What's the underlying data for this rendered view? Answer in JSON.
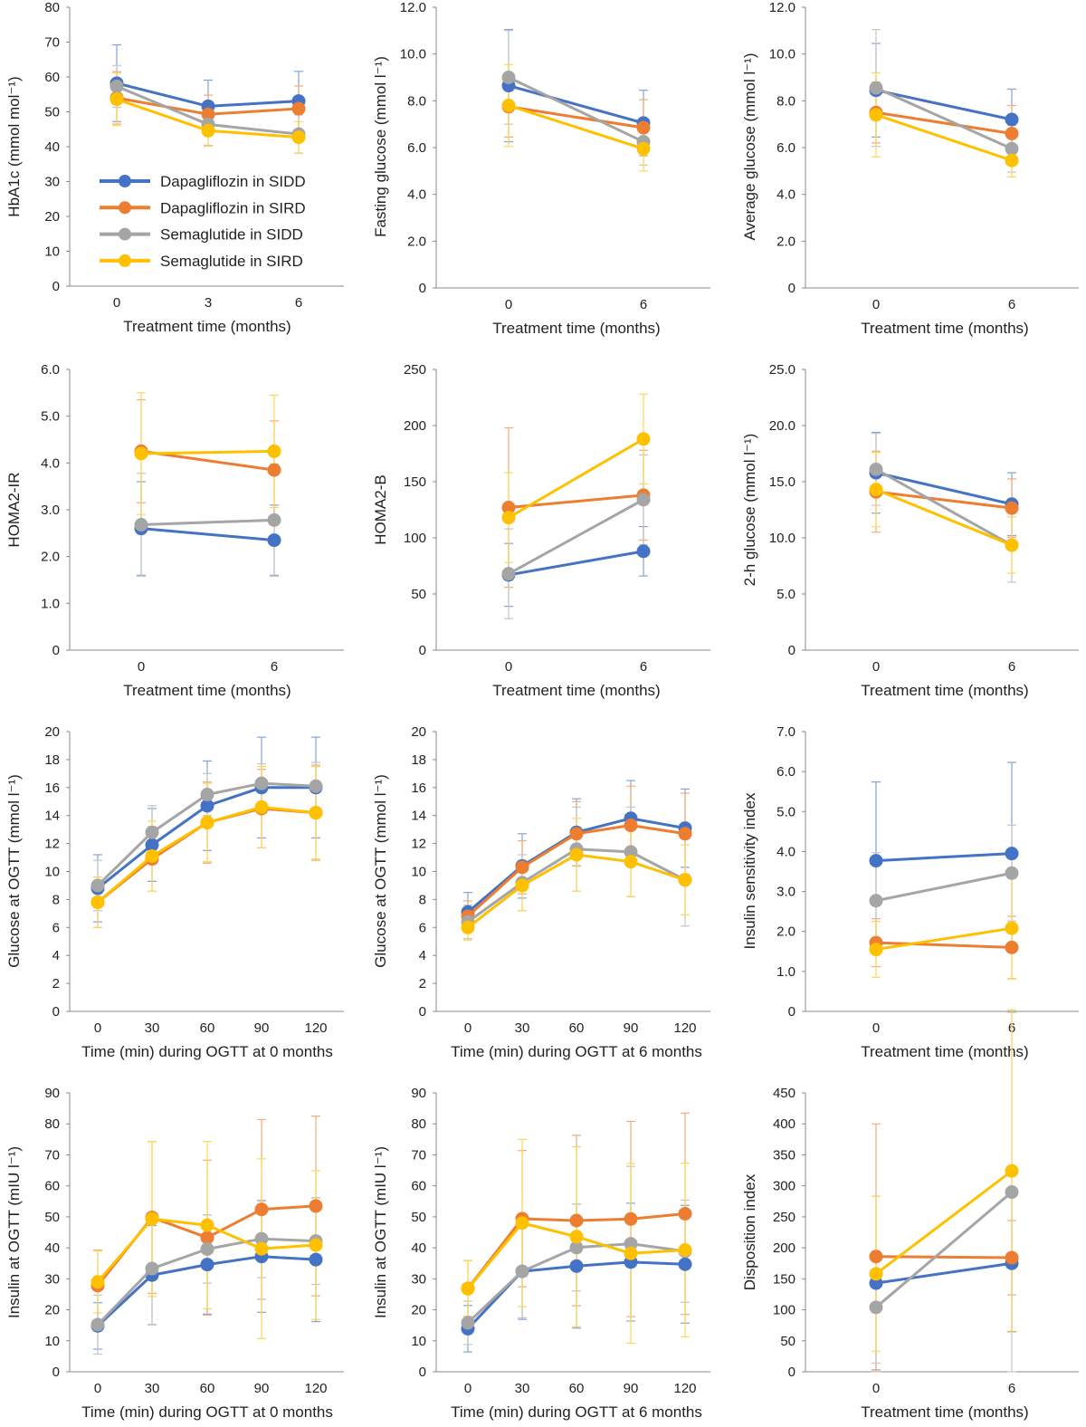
{
  "colors": {
    "Dapagliflozin in SIDD": "#4472C4",
    "Dapagliflozin in SIRD": "#ED7D31",
    "Semaglutide in SIDD": "#A5A5A5",
    "Semaglutide in SIRD": "#FFC000"
  },
  "legend": [
    "Dapagliflozin in SIDD",
    "Dapagliflozin in SIRD",
    "Semaglutide in SIDD",
    "Semaglutide in SIRD"
  ],
  "chart_data": [
    {
      "type": "line",
      "xlabel": "Treatment time (months)",
      "ylabel": "HbA1c (mmol mol⁻¹)",
      "x": [
        "0",
        "3",
        "6"
      ],
      "ylim": [
        0,
        80
      ],
      "yticks": [
        "0",
        "10",
        "20",
        "30",
        "40",
        "50",
        "60",
        "70",
        "80"
      ],
      "legend_position": "lower-left",
      "series": [
        {
          "name": "Dapagliflozin in SIDD",
          "values": [
            58.2,
            51.6,
            53.1
          ],
          "err": [
            11,
            7.5,
            8.5
          ]
        },
        {
          "name": "Dapagliflozin in SIRD",
          "values": [
            54.0,
            49.3,
            50.9
          ],
          "err": [
            7.5,
            5.5,
            6.5
          ]
        },
        {
          "name": "Semaglutide in SIDD",
          "values": [
            57.3,
            46.4,
            43.6
          ],
          "err": [
            6,
            6,
            5.5
          ]
        },
        {
          "name": "Semaglutide in SIRD",
          "values": [
            53.6,
            44.6,
            42.7
          ],
          "err": [
            7.5,
            4.5,
            4.5
          ]
        }
      ]
    },
    {
      "type": "line",
      "xlabel": "Treatment time (months)",
      "ylabel": "Fasting glucose (mmol l⁻¹)",
      "x": [
        "0",
        "6"
      ],
      "ylim": [
        0,
        12
      ],
      "yticks": [
        "0",
        "2.0",
        "4.0",
        "6.0",
        "8.0",
        "10.0",
        "12.0"
      ],
      "series": [
        {
          "name": "Dapagliflozin in SIDD",
          "values": [
            8.65,
            7.05
          ],
          "err": [
            2.4,
            1.4
          ]
        },
        {
          "name": "Dapagliflozin in SIRD",
          "values": [
            7.75,
            6.85
          ],
          "err": [
            1.3,
            1.2
          ]
        },
        {
          "name": "Semaglutide in SIDD",
          "values": [
            9.0,
            6.25
          ],
          "err": [
            2.0,
            1.0
          ]
        },
        {
          "name": "Semaglutide in SIRD",
          "values": [
            7.8,
            5.95
          ],
          "err": [
            1.75,
            0.95
          ]
        }
      ]
    },
    {
      "type": "line",
      "xlabel": "Treatment time (months)",
      "ylabel": "Average glucose (mmol l⁻¹)",
      "x": [
        "0",
        "6"
      ],
      "ylim": [
        0,
        12
      ],
      "yticks": [
        "0",
        "2.0",
        "4.0",
        "6.0",
        "8.0",
        "10.0",
        "12.0"
      ],
      "series": [
        {
          "name": "Dapagliflozin in SIDD",
          "values": [
            8.45,
            7.2
          ],
          "err": [
            2.0,
            1.3
          ]
        },
        {
          "name": "Dapagliflozin in SIRD",
          "values": [
            7.5,
            6.6
          ],
          "err": [
            1.3,
            1.2
          ]
        },
        {
          "name": "Semaglutide in SIDD",
          "values": [
            8.55,
            5.95
          ],
          "err": [
            2.5,
            1.0
          ]
        },
        {
          "name": "Semaglutide in SIRD",
          "values": [
            7.4,
            5.45
          ],
          "err": [
            1.8,
            0.7
          ]
        }
      ]
    },
    {
      "type": "line",
      "xlabel": "Treatment time (months)",
      "ylabel": "HOMA2-IR",
      "x": [
        "0",
        "6"
      ],
      "ylim": [
        0,
        6
      ],
      "yticks": [
        "0",
        "1.0",
        "2.0",
        "3.0",
        "4.0",
        "5.0",
        "6.0"
      ],
      "series": [
        {
          "name": "Dapagliflozin in SIDD",
          "values": [
            2.6,
            2.35
          ],
          "err": [
            1.0,
            0.75
          ]
        },
        {
          "name": "Dapagliflozin in SIRD",
          "values": [
            4.25,
            3.85
          ],
          "err": [
            1.1,
            1.05
          ]
        },
        {
          "name": "Semaglutide in SIDD",
          "values": [
            2.68,
            2.78
          ],
          "err": [
            1.1,
            1.2
          ]
        },
        {
          "name": "Semaglutide in SIRD",
          "values": [
            4.2,
            4.25
          ],
          "err": [
            1.3,
            1.2
          ]
        }
      ]
    },
    {
      "type": "line",
      "xlabel": "Treatment time (months)",
      "ylabel": "HOMA2-B",
      "x": [
        "0",
        "6"
      ],
      "ylim": [
        0,
        250
      ],
      "yticks": [
        "0",
        "50",
        "100",
        "150",
        "200",
        "250"
      ],
      "series": [
        {
          "name": "Dapagliflozin in SIDD",
          "values": [
            67,
            88
          ],
          "err": [
            28,
            22
          ]
        },
        {
          "name": "Dapagliflozin in SIRD",
          "values": [
            127,
            138
          ],
          "err": [
            71,
            40
          ]
        },
        {
          "name": "Semaglutide in SIDD",
          "values": [
            68,
            134
          ],
          "err": [
            40,
            40
          ]
        },
        {
          "name": "Semaglutide in SIRD",
          "values": [
            118,
            188
          ],
          "err": [
            40,
            40
          ]
        }
      ]
    },
    {
      "type": "line",
      "xlabel": "Treatment time (months)",
      "ylabel": "2-h glucose (mmol l⁻¹)",
      "x": [
        "0",
        "6"
      ],
      "ylim": [
        0,
        25
      ],
      "yticks": [
        "0",
        "5.0",
        "10.0",
        "15.0",
        "20.0",
        "25.0"
      ],
      "series": [
        {
          "name": "Dapagliflozin in SIDD",
          "values": [
            15.8,
            13.0
          ],
          "err": [
            3.6,
            2.8
          ]
        },
        {
          "name": "Dapagliflozin in SIRD",
          "values": [
            14.1,
            12.65
          ],
          "err": [
            3.6,
            2.6
          ]
        },
        {
          "name": "Semaglutide in SIDD",
          "values": [
            16.1,
            9.35
          ],
          "err": [
            3.2,
            3.3
          ]
        },
        {
          "name": "Semaglutide in SIRD",
          "values": [
            14.3,
            9.35
          ],
          "err": [
            3.3,
            2.5
          ]
        }
      ]
    },
    {
      "type": "line",
      "xlabel": "Time (min) during OGTT at 0 months",
      "ylabel": "Glucose at OGTT (mmol l⁻¹)",
      "x": [
        "0",
        "30",
        "60",
        "90",
        "120"
      ],
      "ylim": [
        0,
        20
      ],
      "yticks": [
        "0",
        "2",
        "4",
        "6",
        "8",
        "10",
        "12",
        "14",
        "16",
        "18",
        "20"
      ],
      "series": [
        {
          "name": "Dapagliflozin in SIDD",
          "values": [
            8.8,
            11.9,
            14.7,
            16.0,
            16.0
          ],
          "err": [
            2.4,
            2.6,
            3.2,
            3.6,
            3.6
          ]
        },
        {
          "name": "Dapagliflozin in SIRD",
          "values": [
            7.8,
            10.9,
            13.5,
            14.5,
            14.2
          ],
          "err": [
            1.8,
            2.3,
            2.9,
            2.8,
            3.4
          ]
        },
        {
          "name": "Semaglutide in SIDD",
          "values": [
            9.0,
            12.8,
            15.5,
            16.3,
            16.1
          ],
          "err": [
            1.8,
            1.9,
            1.5,
            1.4,
            1.7
          ]
        },
        {
          "name": "Semaglutide in SIRD",
          "values": [
            7.8,
            11.1,
            13.5,
            14.6,
            14.2
          ],
          "err": [
            1.8,
            2.5,
            2.8,
            2.9,
            3.3
          ]
        }
      ]
    },
    {
      "type": "line",
      "xlabel": "Time (min) during OGTT at 6 months",
      "ylabel": "Glucose at OGTT (mmol l⁻¹)",
      "x": [
        "0",
        "30",
        "60",
        "90",
        "120"
      ],
      "ylim": [
        0,
        20
      ],
      "yticks": [
        "0",
        "2",
        "4",
        "6",
        "8",
        "10",
        "12",
        "14",
        "16",
        "18",
        "20"
      ],
      "series": [
        {
          "name": "Dapagliflozin in SIDD",
          "values": [
            7.1,
            10.4,
            12.8,
            13.8,
            13.1
          ],
          "err": [
            1.4,
            2.3,
            2.4,
            2.7,
            2.8
          ]
        },
        {
          "name": "Dapagliflozin in SIRD",
          "values": [
            6.8,
            10.3,
            12.7,
            13.3,
            12.7
          ],
          "err": [
            1.1,
            1.9,
            2.3,
            2.8,
            2.9
          ]
        },
        {
          "name": "Semaglutide in SIDD",
          "values": [
            6.4,
            9.2,
            11.6,
            11.4,
            9.4
          ],
          "err": [
            1.2,
            2.0,
            3.0,
            3.2,
            3.3
          ]
        },
        {
          "name": "Semaglutide in SIRD",
          "values": [
            6.0,
            9.0,
            11.2,
            10.7,
            9.4
          ],
          "err": [
            0.9,
            1.8,
            2.6,
            2.5,
            2.5
          ]
        }
      ]
    },
    {
      "type": "line",
      "xlabel": "Treatment time (months)",
      "ylabel": "Insulin sensitivity index",
      "x": [
        "0",
        "6"
      ],
      "ylim": [
        0,
        7
      ],
      "yticks": [
        "0",
        "1.0",
        "2.0",
        "3.0",
        "4.0",
        "5.0",
        "6.0",
        "7.0"
      ],
      "series": [
        {
          "name": "Dapagliflozin in SIDD",
          "values": [
            3.77,
            3.95
          ],
          "err": [
            1.97,
            2.28
          ]
        },
        {
          "name": "Dapagliflozin in SIRD",
          "values": [
            1.72,
            1.6
          ],
          "err": [
            0.6,
            0.78
          ]
        },
        {
          "name": "Semaglutide in SIDD",
          "values": [
            2.77,
            3.46
          ],
          "err": [
            1.2,
            1.2
          ]
        },
        {
          "name": "Semaglutide in SIRD",
          "values": [
            1.55,
            2.08
          ],
          "err": [
            0.7,
            1.27
          ]
        }
      ]
    },
    {
      "type": "line",
      "xlabel": "Time (min) during OGTT at 0 months",
      "ylabel": "Insulin at OGTT (mIU l⁻¹)",
      "x": [
        "0",
        "30",
        "60",
        "90",
        "120"
      ],
      "ylim": [
        0,
        90
      ],
      "yticks": [
        "0",
        "10",
        "20",
        "30",
        "40",
        "50",
        "60",
        "70",
        "80",
        "90"
      ],
      "series": [
        {
          "name": "Dapagliflozin in SIDD",
          "values": [
            14.8,
            31.2,
            34.6,
            37.2,
            36.2
          ],
          "err": [
            7.5,
            16,
            16,
            18,
            20
          ]
        },
        {
          "name": "Dapagliflozin in SIRD",
          "values": [
            27.8,
            49.8,
            43.3,
            52.4,
            53.5
          ],
          "err": [
            11.5,
            24.5,
            25,
            29,
            29
          ]
        },
        {
          "name": "Semaglutide in SIDD",
          "values": [
            15.2,
            33.3,
            39.6,
            42.9,
            42.2
          ],
          "err": [
            9.5,
            18,
            11,
            12.5,
            14
          ]
        },
        {
          "name": "Semaglutide in SIRD",
          "values": [
            29.0,
            49.3,
            47.3,
            39.7,
            40.9
          ],
          "err": [
            10,
            25,
            27,
            29,
            24
          ]
        }
      ]
    },
    {
      "type": "line",
      "xlabel": "Time (min) during OGTT at 6 months",
      "ylabel": "Insulin at OGTT (mIU l⁻¹)",
      "x": [
        "0",
        "30",
        "60",
        "90",
        "120"
      ],
      "ylim": [
        0,
        90
      ],
      "yticks": [
        "0",
        "10",
        "20",
        "30",
        "40",
        "50",
        "60",
        "70",
        "80",
        "90"
      ],
      "series": [
        {
          "name": "Dapagliflozin in SIDD",
          "values": [
            13.9,
            32.4,
            34.1,
            35.4,
            34.7
          ],
          "err": [
            7.5,
            15.5,
            20,
            19,
            19
          ]
        },
        {
          "name": "Dapagliflozin in SIRD",
          "values": [
            26.9,
            49.4,
            48.8,
            49.3,
            51.0
          ],
          "err": [
            9,
            22,
            27.5,
            31.5,
            32.5
          ]
        },
        {
          "name": "Semaglutide in SIDD",
          "values": [
            15.8,
            32.4,
            40.1,
            41.3,
            38.9
          ],
          "err": [
            7,
            15,
            14,
            25,
            16.5
          ]
        },
        {
          "name": "Semaglutide in SIRD",
          "values": [
            26.8,
            48.0,
            43.6,
            38.2,
            39.3
          ],
          "err": [
            9,
            27,
            29,
            29,
            28
          ]
        }
      ]
    },
    {
      "type": "line",
      "xlabel": "Treatment time (months)",
      "ylabel": "Disposition index",
      "x": [
        "0",
        "6"
      ],
      "ylim": [
        0,
        450
      ],
      "yticks": [
        "0",
        "50",
        "100",
        "150",
        "200",
        "250",
        "300",
        "350",
        "400",
        "450"
      ],
      "series": [
        {
          "name": "Dapagliflozin in SIDD",
          "values": [
            143,
            175
          ],
          "err": [
            140,
            110
          ]
        },
        {
          "name": "Dapagliflozin in SIRD",
          "values": [
            186,
            184
          ],
          "err": [
            214,
            60
          ]
        },
        {
          "name": "Semaglutide in SIDD",
          "values": [
            104,
            290
          ],
          "err": [
            90,
            290
          ]
        },
        {
          "name": "Semaglutide in SIRD",
          "values": [
            158,
            324
          ],
          "err": [
            125,
            260
          ]
        }
      ]
    }
  ]
}
